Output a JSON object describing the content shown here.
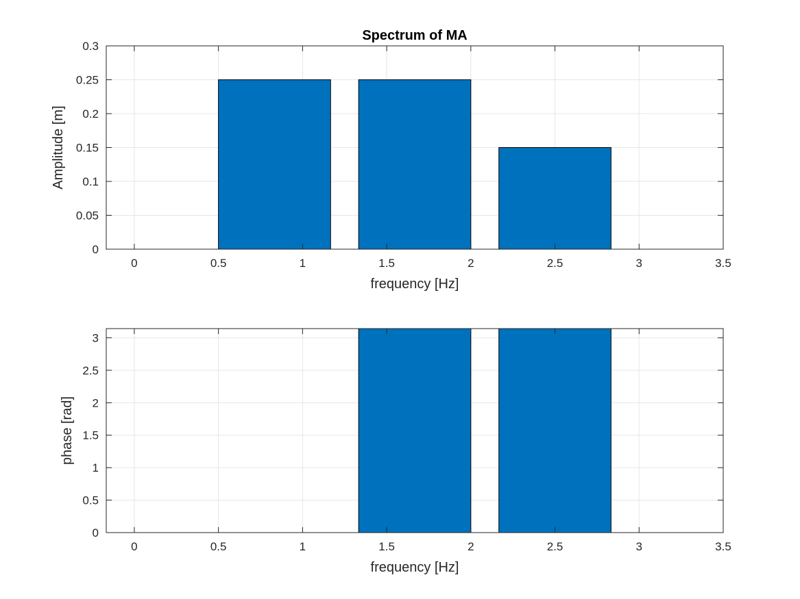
{
  "chart_data": [
    {
      "type": "bar",
      "title": "Spectrum of MA",
      "xlabel": "frequency [Hz]",
      "ylabel": "Amplitude [m]",
      "x": [
        0.8333,
        1.6667,
        2.5
      ],
      "values": [
        0.25,
        0.25,
        0.15
      ],
      "bar_width_data": 0.6667,
      "xlim": [
        -0.1667,
        3.5
      ],
      "ylim": [
        0,
        0.3
      ],
      "xticks": [
        0,
        0.5,
        1,
        1.5,
        2,
        2.5,
        3,
        3.5
      ],
      "xtick_labels": [
        "0",
        "0.5",
        "1",
        "1.5",
        "2",
        "2.5",
        "3",
        "3.5"
      ],
      "yticks": [
        0,
        0.05,
        0.1,
        0.15,
        0.2,
        0.25,
        0.3
      ],
      "ytick_labels": [
        "0",
        "0.05",
        "0.1",
        "0.15",
        "0.2",
        "0.25",
        "0.3"
      ],
      "grid": true,
      "bar_color": "#0072BD"
    },
    {
      "type": "bar",
      "title": "",
      "xlabel": "frequency [Hz]",
      "ylabel": "phase [rad]",
      "x": [
        0.8333,
        1.6667,
        2.5
      ],
      "values": [
        0,
        3.1416,
        3.1416
      ],
      "bar_width_data": 0.6667,
      "xlim": [
        -0.1667,
        3.5
      ],
      "ylim": [
        0,
        3.1416
      ],
      "xticks": [
        0,
        0.5,
        1,
        1.5,
        2,
        2.5,
        3,
        3.5
      ],
      "xtick_labels": [
        "0",
        "0.5",
        "1",
        "1.5",
        "2",
        "2.5",
        "3",
        "3.5"
      ],
      "yticks": [
        0,
        0.5,
        1,
        1.5,
        2,
        2.5,
        3
      ],
      "ytick_labels": [
        "0",
        "0.5",
        "1",
        "1.5",
        "2",
        "2.5",
        "3"
      ],
      "grid": true,
      "bar_color": "#0072BD"
    }
  ]
}
